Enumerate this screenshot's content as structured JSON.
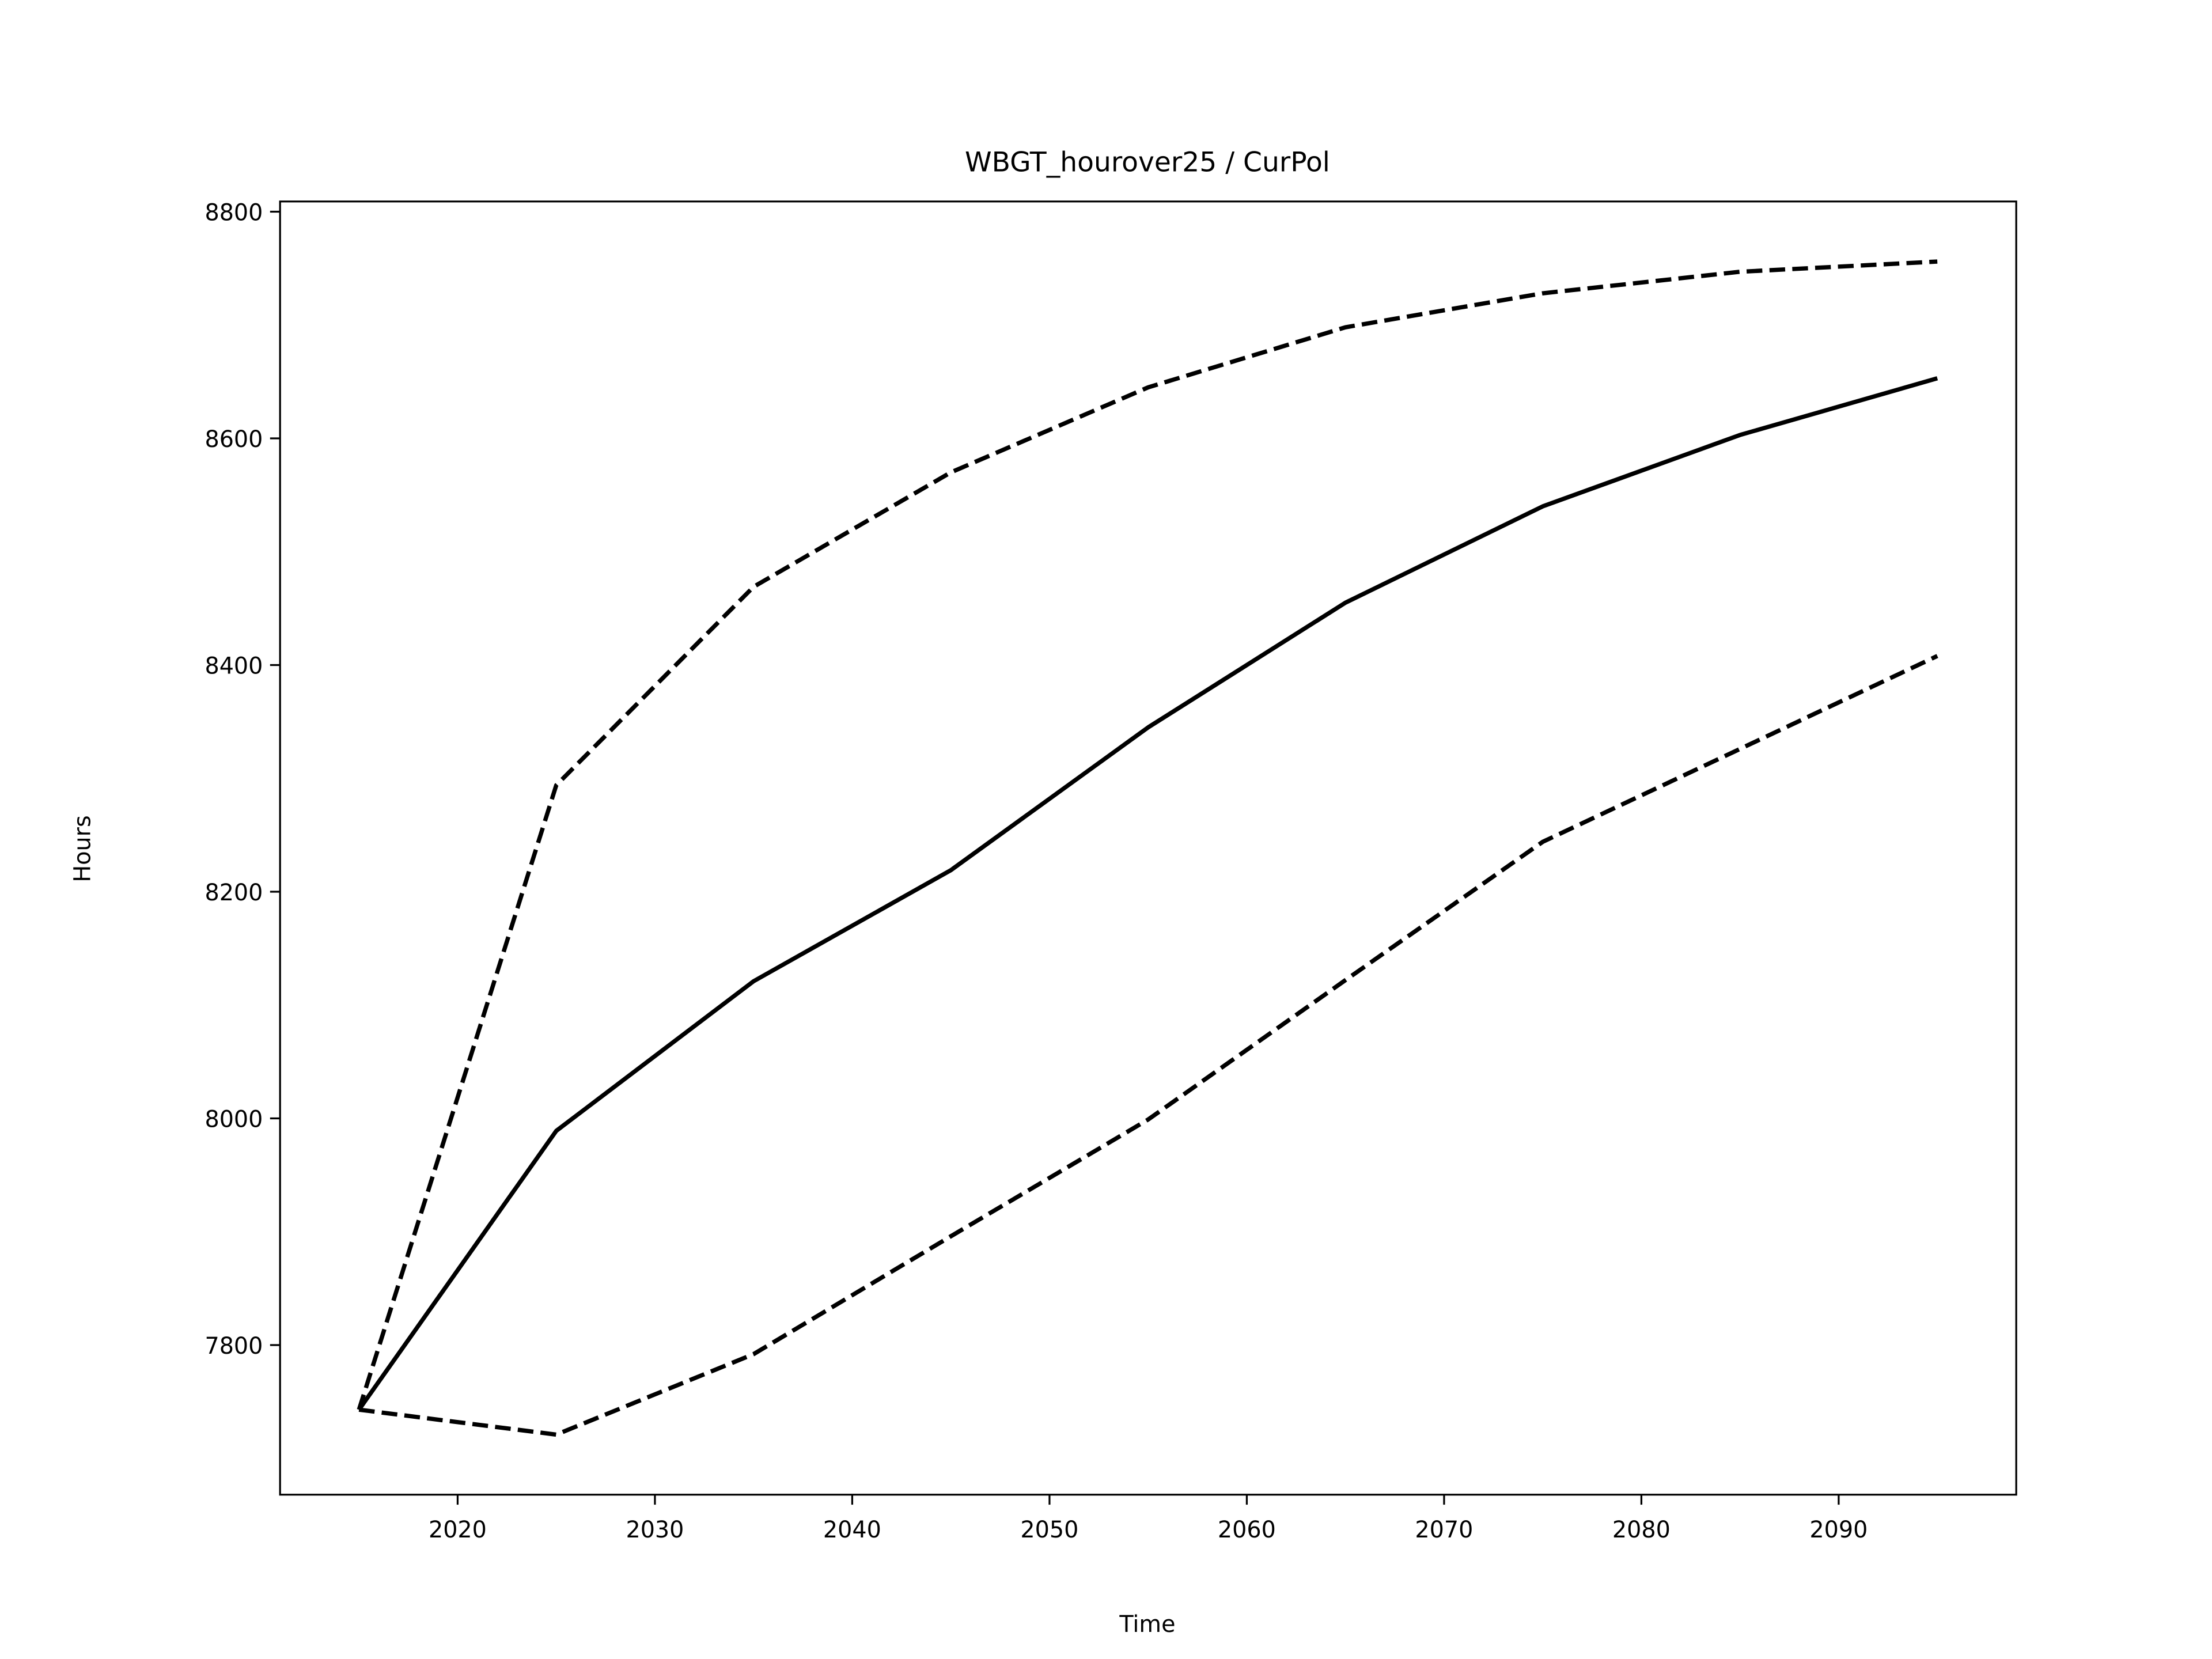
{
  "chart_data": {
    "type": "line",
    "title": "WBGT_hourover25 / CurPol",
    "xlabel": "Time",
    "ylabel": "Hours",
    "x": [
      2015,
      2025,
      2035,
      2045,
      2055,
      2065,
      2075,
      2085,
      2095
    ],
    "series": [
      {
        "color": "#000000",
        "linestyle": "dashed",
        "values": [
          7743,
          8294,
          8469,
          8570,
          8645,
          8698,
          8728,
          8747,
          8756
        ]
      },
      {
        "color": "#000000",
        "linestyle": "solid",
        "values": [
          7743,
          7989,
          8121,
          8219,
          8345,
          8455,
          8540,
          8603,
          8653
        ]
      },
      {
        "color": "#000000",
        "linestyle": "dashed",
        "values": [
          7743,
          7721,
          7792,
          7896,
          7999,
          8122,
          8244,
          8326,
          8408
        ]
      }
    ],
    "xlim": [
      2011,
      2099
    ],
    "xticks": [
      2020,
      2030,
      2040,
      2050,
      2060,
      2070,
      2080,
      2090
    ],
    "ylim": [
      7668,
      8809
    ],
    "yticks": [
      7800,
      8000,
      8200,
      8400,
      8600,
      8800
    ],
    "grid": false
  }
}
